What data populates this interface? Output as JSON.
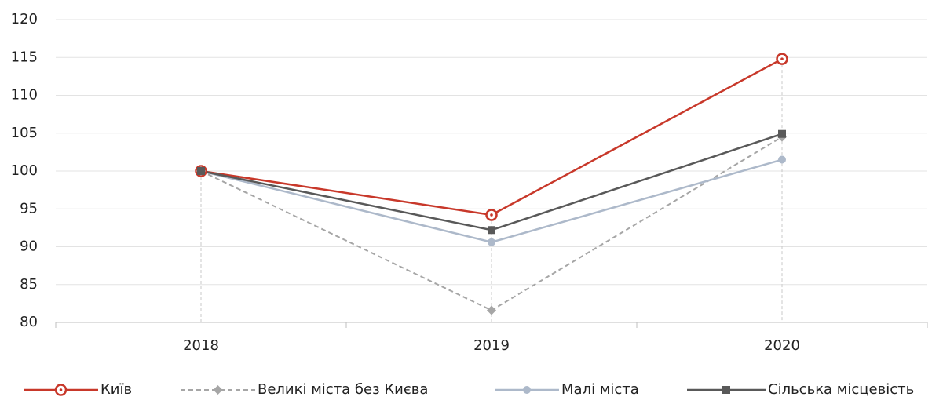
{
  "chart_data": {
    "type": "line",
    "categories": [
      "2018",
      "2019",
      "2020"
    ],
    "series": [
      {
        "name": "Київ",
        "color": "#c8382a",
        "marker": "ring",
        "dashed": false,
        "values": [
          100,
          94.2,
          114.8
        ]
      },
      {
        "name": "Великі міста без Києва",
        "color": "#a6a6a6",
        "marker": "diamond",
        "dashed": true,
        "values": [
          100,
          81.6,
          104.5
        ]
      },
      {
        "name": "Малі міста",
        "color": "#adb9ca",
        "marker": "circle",
        "dashed": false,
        "values": [
          100,
          90.6,
          101.5
        ]
      },
      {
        "name": "Сільська місцевість",
        "color": "#595959",
        "marker": "square",
        "dashed": false,
        "values": [
          100,
          92.2,
          104.9
        ]
      }
    ],
    "ylim": [
      80,
      120
    ],
    "yticks": [
      80,
      85,
      90,
      95,
      100,
      105,
      110,
      115,
      120
    ],
    "grid": true,
    "legend": "bottom"
  }
}
